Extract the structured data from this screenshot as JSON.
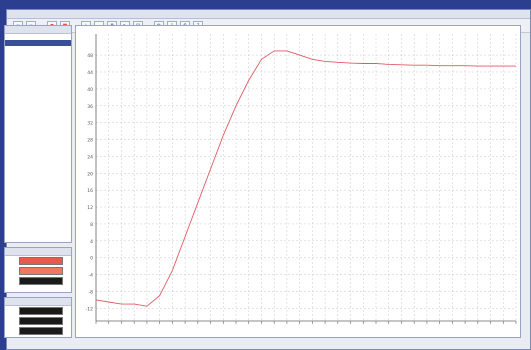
{
  "window": {
    "menu": [
      "",
      "",
      "",
      ""
    ],
    "toolbar_buttons": [
      {
        "name": "new-icon",
        "glyph": "▫"
      },
      {
        "name": "open-icon",
        "glyph": "▫"
      },
      {
        "name": "record-icon",
        "glyph": "●",
        "red": true
      },
      {
        "name": "stop-icon",
        "glyph": "■",
        "red": true
      },
      {
        "name": "zoom-in-icon",
        "glyph": "+"
      },
      {
        "name": "zoom-out-icon",
        "glyph": "−"
      },
      {
        "name": "grid-icon",
        "glyph": "#"
      },
      {
        "name": "cursor-icon",
        "glyph": "↖"
      },
      {
        "name": "chart-icon",
        "glyph": "▤"
      },
      {
        "name": "settings-icon",
        "glyph": "⚙"
      },
      {
        "name": "export-icon",
        "glyph": "⇩"
      },
      {
        "name": "print-icon",
        "glyph": "⎙"
      },
      {
        "name": "help-icon",
        "glyph": "?"
      }
    ]
  },
  "sidebar": {
    "tree_panel_title": "",
    "tree_items": [
      {
        "label": "",
        "selected": false
      },
      {
        "label": "",
        "selected": true
      },
      {
        "label": "",
        "selected": false
      }
    ],
    "color_panel_1": {
      "title": "",
      "swatches": [
        {
          "label": "",
          "color": "#e85a48"
        },
        {
          "label": "",
          "color": "#f07860"
        },
        {
          "label": "",
          "color": "#1a1a1a"
        }
      ]
    },
    "color_panel_2": {
      "title": "",
      "swatches": [
        {
          "label": "",
          "color": "#1a1a1a"
        },
        {
          "label": "",
          "color": "#1a1a1a"
        },
        {
          "label": "",
          "color": "#1a1a1a"
        }
      ]
    }
  },
  "colors": {
    "curve": "#e05a66",
    "grid": "#c8c8c8"
  },
  "chart_data": {
    "type": "line",
    "title": "",
    "xlabel": "",
    "ylabel": "",
    "y_ticks": [
      -12,
      -8,
      -4,
      0,
      4,
      8,
      12,
      16,
      20,
      24,
      28,
      32,
      36,
      40,
      44,
      48
    ],
    "x_tick_count": 34,
    "ylim": [
      -15,
      53
    ],
    "xlim": [
      0,
      33
    ],
    "grid": true,
    "series": [
      {
        "name": "",
        "x": [
          0,
          1,
          2,
          3,
          4,
          5,
          6,
          7,
          8,
          9,
          10,
          11,
          12,
          13,
          14,
          15,
          16,
          17,
          18,
          19,
          20,
          21,
          22,
          23,
          24,
          25,
          26,
          27,
          28,
          29,
          30,
          31,
          32,
          33
        ],
        "y": [
          -10,
          -10.5,
          -11,
          -11,
          -11.5,
          -9,
          -3,
          5,
          13,
          21,
          29,
          36,
          42,
          47,
          49,
          49,
          48,
          47,
          46.5,
          46.3,
          46.1,
          46,
          46,
          45.8,
          45.7,
          45.6,
          45.6,
          45.5,
          45.5,
          45.5,
          45.4,
          45.4,
          45.4,
          45.4
        ]
      }
    ]
  }
}
